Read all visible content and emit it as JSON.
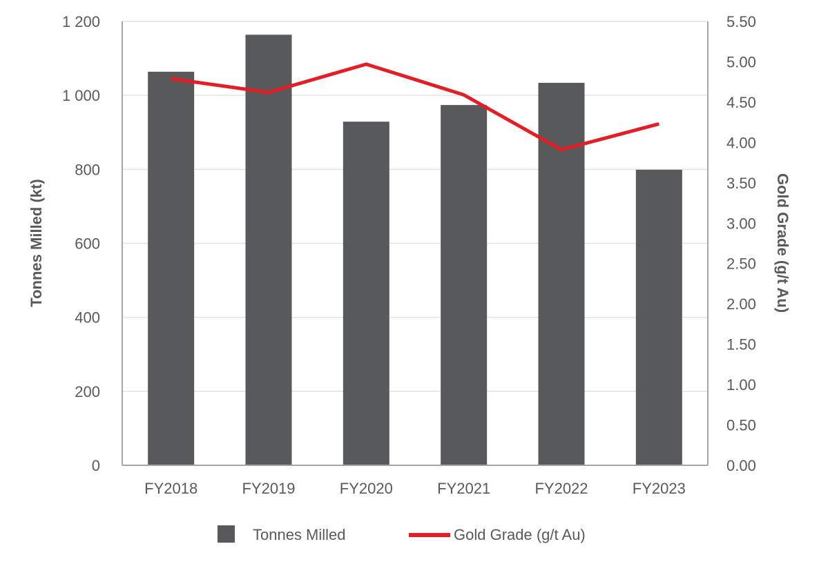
{
  "chart_data": {
    "type": "bar",
    "title": "",
    "categories": [
      "FY2018",
      "FY2019",
      "FY2020",
      "FY2021",
      "FY2022",
      "FY2023"
    ],
    "series": [
      {
        "name": "Tonnes Milled",
        "type": "bar",
        "axis": "left",
        "color": "#58595b",
        "values": [
          1064,
          1164,
          929,
          974,
          1034,
          799
        ]
      },
      {
        "name": "Gold Grade (g/t Au)",
        "type": "line",
        "axis": "right",
        "color": "#e31e26",
        "values": [
          4.79,
          4.62,
          4.97,
          4.59,
          3.91,
          4.23
        ]
      }
    ],
    "xlabel": "",
    "ylabel": "Tonnes Milled (kt)",
    "y2label": "Gold Grade (g/t Au)",
    "ylim": [
      0,
      1200
    ],
    "y2lim": [
      0,
      5.5
    ],
    "yticks": [
      "0",
      "200",
      "400",
      "600",
      "800",
      "1 000",
      "1 200"
    ],
    "y2ticks": [
      "0.00",
      "0.50",
      "1.00",
      "1.50",
      "2.00",
      "2.50",
      "3.00",
      "3.50",
      "4.00",
      "4.50",
      "5.00",
      "5.50"
    ],
    "grid": true,
    "legend_position": "bottom"
  },
  "legend": {
    "items": [
      {
        "label": "Tonnes Milled",
        "symbol": "square",
        "color": "#58595b"
      },
      {
        "label": "Gold Grade (g/t Au)",
        "symbol": "line",
        "color": "#e31e26"
      }
    ]
  },
  "colors": {
    "bar": "#58595b",
    "line": "#e31e26",
    "grid": "#e3e3e3",
    "axis": "#a6a6a6",
    "text": "#595959"
  }
}
